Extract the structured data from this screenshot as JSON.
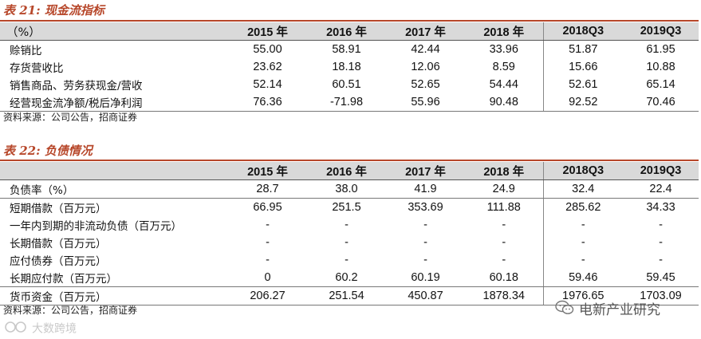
{
  "table21": {
    "title": "表 21:  现金流指标",
    "header_label": "（%）",
    "columns": [
      "2015 年",
      "2016 年",
      "2017 年",
      "2018 年",
      "2018Q3",
      "2019Q3"
    ],
    "rows": [
      {
        "label": "赊销比",
        "values": [
          "55.00",
          "58.91",
          "42.44",
          "33.96",
          "51.87",
          "61.95"
        ]
      },
      {
        "label": "存货营收比",
        "values": [
          "23.62",
          "18.18",
          "12.06",
          "8.59",
          "15.66",
          "10.88"
        ]
      },
      {
        "label": "销售商品、劳务获现金/营收",
        "values": [
          "52.14",
          "60.51",
          "52.65",
          "54.44",
          "52.61",
          "65.14"
        ]
      },
      {
        "label": "经营现金流净额/税后净利润",
        "values": [
          "76.36",
          "-71.98",
          "55.96",
          "90.48",
          "92.52",
          "70.46"
        ]
      }
    ],
    "source": "资料来源：公司公告，招商证券"
  },
  "table22": {
    "title": "表 22:  负债情况",
    "header_label": "",
    "columns": [
      "2015 年",
      "2016 年",
      "2017 年",
      "2018 年",
      "2018Q3",
      "2019Q3"
    ],
    "rows": [
      {
        "label": "负债率（%）",
        "values": [
          "28.7",
          "38.0",
          "41.9",
          "24.9",
          "32.4",
          "22.4"
        ]
      },
      {
        "label": "短期借款（百万元）",
        "values": [
          "66.95",
          "251.5",
          "353.69",
          "111.88",
          "285.62",
          "34.33"
        ]
      },
      {
        "label": "一年内到期的非流动负债（百万元）",
        "values": [
          "-",
          "-",
          "-",
          "-",
          "-",
          "-"
        ]
      },
      {
        "label": "长期借款（百万元）",
        "values": [
          "-",
          "-",
          "-",
          "-",
          "-",
          "-"
        ]
      },
      {
        "label": "应付债券（百万元）",
        "values": [
          "-",
          "-",
          "-",
          "-",
          "-",
          "-"
        ]
      },
      {
        "label": "长期应付款（百万元）",
        "values": [
          "0",
          "60.2",
          "60.19",
          "60.18",
          "59.46",
          "59.45"
        ]
      },
      {
        "label": "货币资金（百万元）",
        "values": [
          "206.27",
          "251.54",
          "450.87",
          "1878.34",
          "1976.65",
          "1703.09"
        ]
      }
    ],
    "source": "资料来源：公司公告，招商证券"
  },
  "watermarks": {
    "right": "电新产业研究",
    "left": "大数跨境"
  },
  "colors": {
    "title": "#b7472a",
    "header_bg": "#d9d9d9"
  }
}
